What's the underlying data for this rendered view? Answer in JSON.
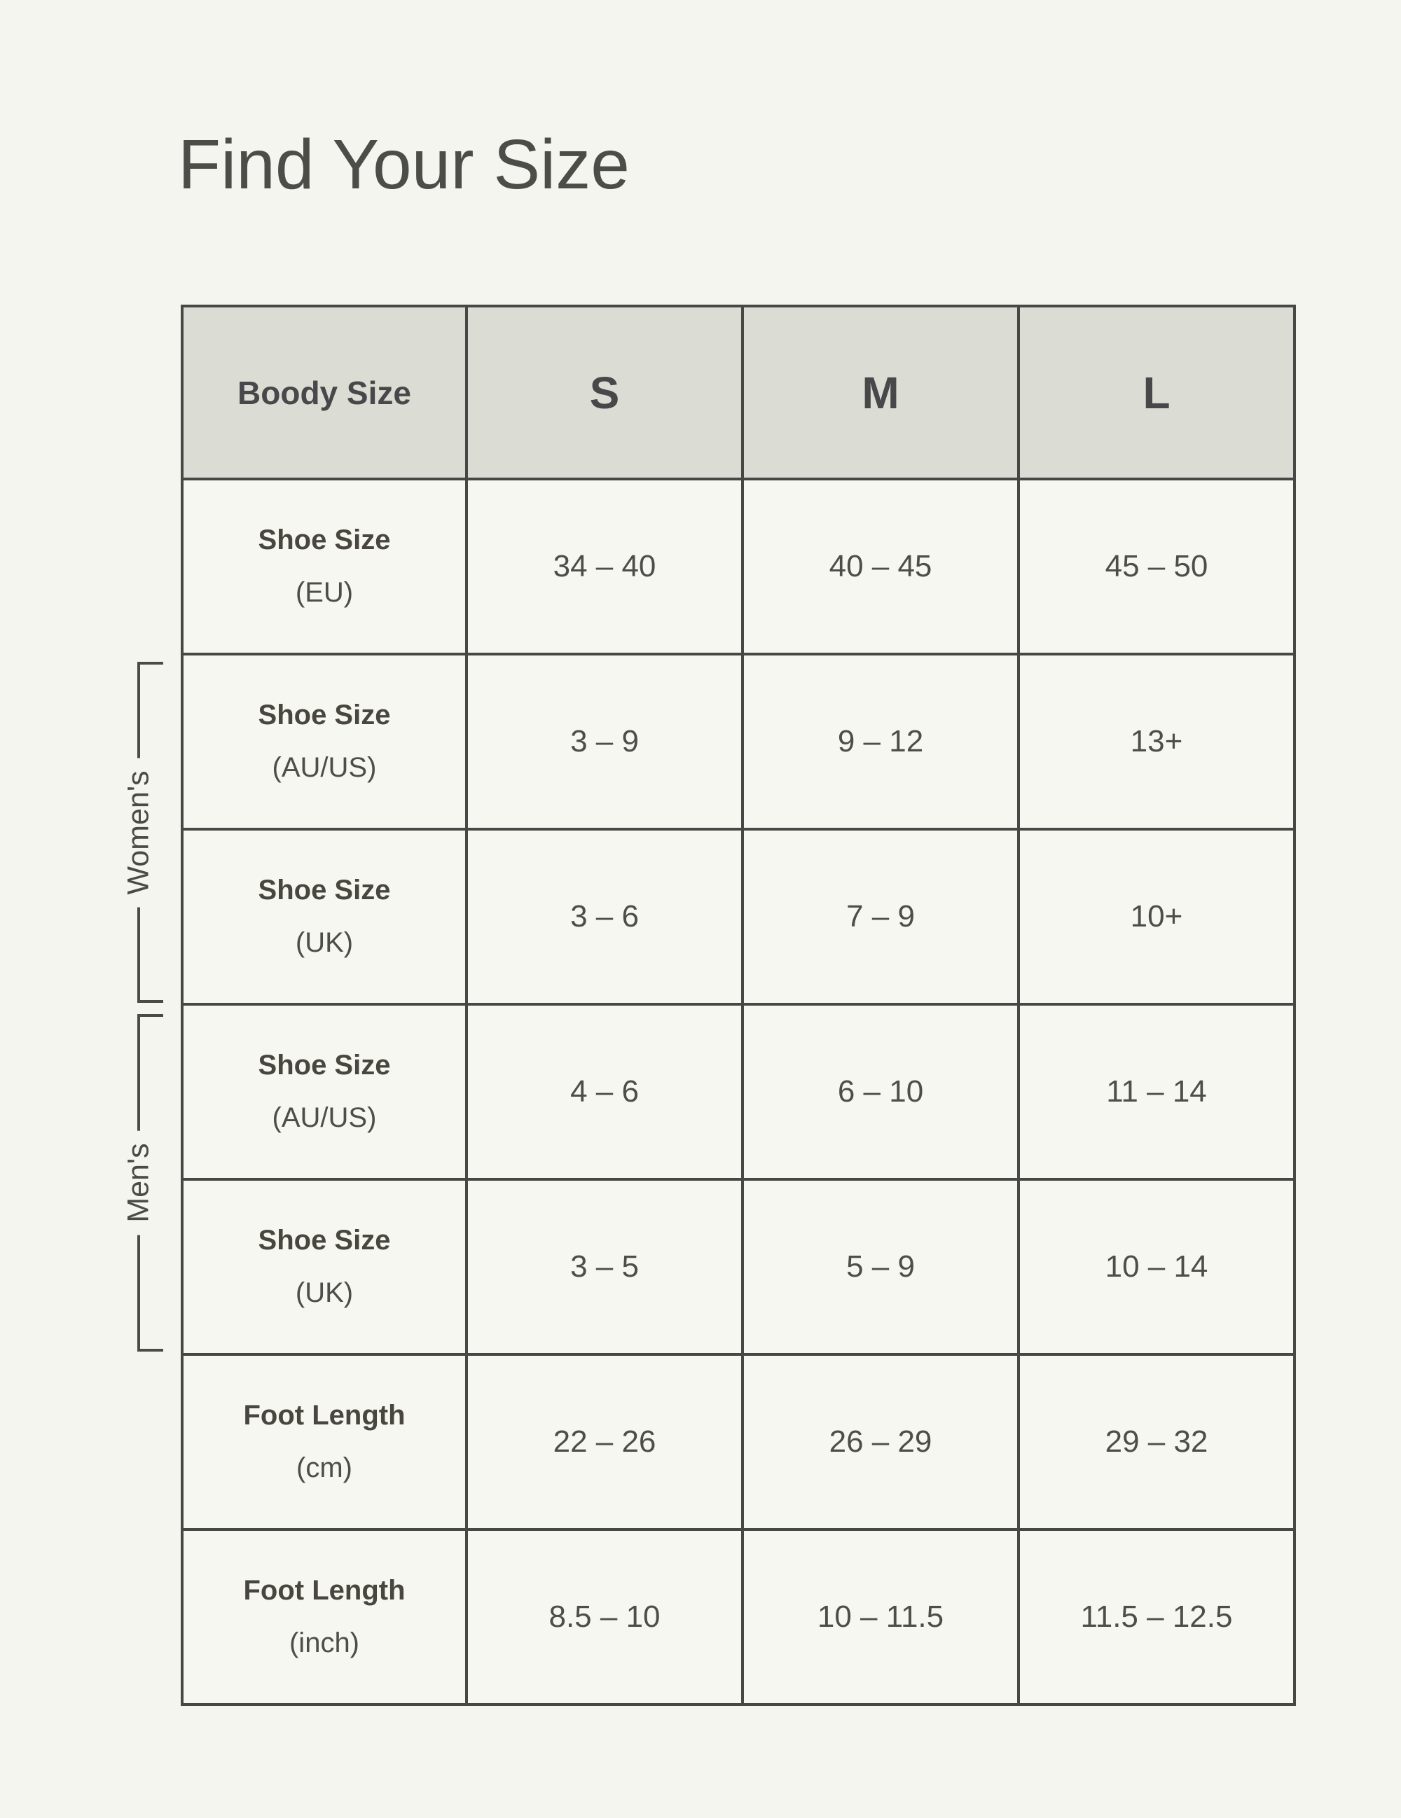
{
  "chart_data": {
    "type": "table",
    "title": "Find Your Size",
    "header": {
      "corner": "Boody Size",
      "columns": [
        "S",
        "M",
        "L"
      ]
    },
    "rows": [
      {
        "label": "Shoe Size",
        "unit": "(EU)",
        "group": "",
        "values": [
          "34 – 40",
          "40 – 45",
          "45 – 50"
        ]
      },
      {
        "label": "Shoe Size",
        "unit": "(AU/US)",
        "group": "Women's",
        "values": [
          "3 – 9",
          "9 – 12",
          "13+"
        ]
      },
      {
        "label": "Shoe Size",
        "unit": "(UK)",
        "group": "Women's",
        "values": [
          "3 – 6",
          "7 – 9",
          "10+"
        ]
      },
      {
        "label": "Shoe Size",
        "unit": "(AU/US)",
        "group": "Men's",
        "values": [
          "4 – 6",
          "6 – 10",
          "11 – 14"
        ]
      },
      {
        "label": "Shoe Size",
        "unit": "(UK)",
        "group": "Men's",
        "values": [
          "3 – 5",
          "5 – 9",
          "10 – 14"
        ]
      },
      {
        "label": "Foot Length",
        "unit": "(cm)",
        "group": "",
        "values": [
          "22 – 26",
          "26 – 29",
          "29 – 32"
        ]
      },
      {
        "label": "Foot Length",
        "unit": "(inch)",
        "group": "",
        "values": [
          "8.5 – 10",
          "10 – 11.5",
          "11.5 – 12.5"
        ]
      }
    ],
    "side_labels": [
      {
        "text": "Women's",
        "rows": [
          2,
          3
        ]
      },
      {
        "text": "Men's",
        "rows": [
          4,
          5
        ]
      }
    ],
    "layout_hints": {
      "legend": "off",
      "grid": "full-borders",
      "header_position": "top-row"
    }
  },
  "colors": {
    "page_background": "#f5f5ef",
    "header_background": "#dbdcd3",
    "cell_background": "#f7f7f1",
    "table_border": "#474745",
    "text": "#4a4a47"
  }
}
